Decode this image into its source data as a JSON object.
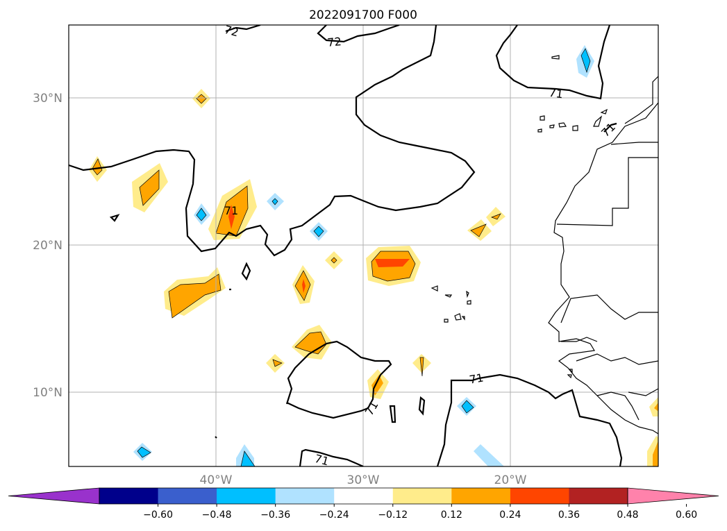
{
  "title": "2022091700 F000",
  "lat_labels": [
    "30°N",
    "20°N",
    "10°N"
  ],
  "lon_labels": [
    "40°W",
    "30°W",
    "20°W"
  ],
  "contour_labels": [
    "72",
    "72",
    "71",
    "71",
    "71",
    "71",
    "71",
    "71",
    "71"
  ],
  "colorbar": {
    "ticks": [
      "−0.60",
      "−0.48",
      "−0.36",
      "−0.24",
      "−0.12",
      "0.12",
      "0.24",
      "0.36",
      "0.48",
      "0.60"
    ],
    "colors": [
      "#9932cc",
      "#00008b",
      "#3a5fcd",
      "#00bfff",
      "#b0e2ff",
      "#ffffff",
      "#ffec8b",
      "#ffa500",
      "#ff4500",
      "#b22222",
      "#ff82ab"
    ]
  },
  "colors": {
    "light_yellow": "#ffec8b",
    "orange": "#ffa500",
    "red_orange": "#ff4500",
    "light_blue": "#b0e2ff",
    "deep_sky_blue": "#00bfff",
    "grid": "#b0b0b0"
  }
}
